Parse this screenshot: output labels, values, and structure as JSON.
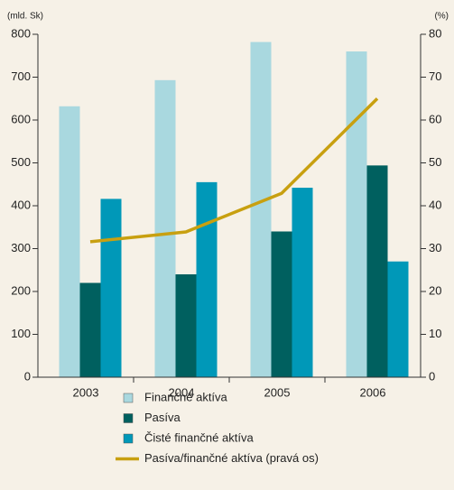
{
  "chart_data": {
    "type": "bar",
    "ylabel": "(mld. Sk)",
    "y2label": "(%)",
    "categories": [
      "2003",
      "2004",
      "2005",
      "2006"
    ],
    "series": [
      {
        "name": "Finančné aktíva",
        "color": "#a9d8df",
        "values": [
          632,
          693,
          782,
          760
        ]
      },
      {
        "name": "Pasíva",
        "color": "#00605f",
        "values": [
          220,
          240,
          340,
          494
        ]
      },
      {
        "name": "Čisté finančné aktíva",
        "color": "#0098b8",
        "values": [
          416,
          455,
          442,
          270
        ]
      },
      {
        "name": "Pasíva/finančné aktíva (pravá os)",
        "color": "#c8a010",
        "type": "line",
        "axis": "y2",
        "values": [
          31.6,
          33.9,
          42.9,
          65
        ]
      }
    ],
    "ylim": [
      0,
      800
    ],
    "yticks": [
      0,
      100,
      200,
      300,
      400,
      500,
      600,
      700,
      800
    ],
    "y2lim": [
      0,
      80
    ],
    "y2ticks": [
      0,
      10,
      20,
      30,
      40,
      50,
      60,
      70,
      80
    ],
    "legend": "bottom"
  }
}
